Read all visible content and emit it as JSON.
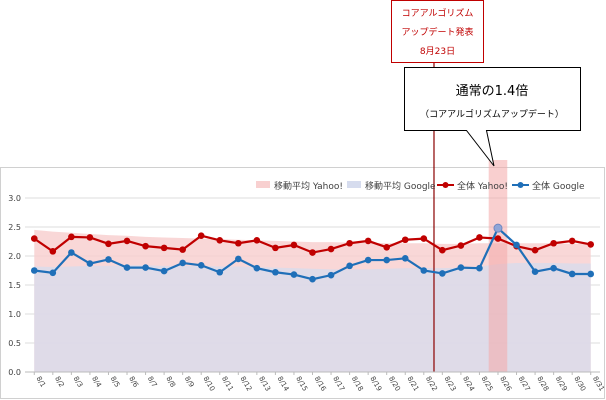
{
  "colors": {
    "yahoo_line": "#c00000",
    "google_line": "#1f6fb8",
    "yahoo_ma_fill": "#f8d0d0",
    "google_ma_fill": "#d6dcee",
    "highlight": "#f4a7a7",
    "event_line": "#8b0000",
    "callout_border": "#c00000"
  },
  "event_callout": {
    "line1": "コアアルゴリズム",
    "line2": "アップデート発表",
    "line3": "8月23日"
  },
  "ratio_callout": {
    "title": "通常の1.4倍",
    "subtitle": "（コアアルゴリズムアップデート）"
  },
  "chart_data": {
    "type": "line",
    "categories": [
      "8/1",
      "8/2",
      "8/3",
      "8/4",
      "8/5",
      "8/6",
      "8/7",
      "8/8",
      "8/9",
      "8/10",
      "8/11",
      "8/12",
      "8/13",
      "8/14",
      "8/15",
      "8/16",
      "8/17",
      "8/18",
      "8/19",
      "8/20",
      "8/21",
      "8/22",
      "8/23",
      "8/24",
      "8/25",
      "8/26",
      "8/27",
      "8/28",
      "8/29",
      "8/30",
      "8/31"
    ],
    "ylim": [
      0,
      3.0
    ],
    "yticks": [
      "0.0",
      "0.5",
      "1.0",
      "1.5",
      "2.0",
      "2.5",
      "3.0"
    ],
    "event_category": "8/23",
    "highlight_category": "8/26",
    "legend_position": "top",
    "series": [
      {
        "name": "移動平均 Yahoo!",
        "kind": "area",
        "values": [
          2.45,
          2.42,
          2.4,
          2.38,
          2.36,
          2.35,
          2.33,
          2.32,
          2.31,
          2.3,
          2.29,
          2.28,
          2.27,
          2.26,
          2.25,
          2.24,
          2.24,
          2.23,
          2.23,
          2.22,
          2.22,
          2.22,
          2.21,
          2.21,
          2.22,
          2.22,
          2.22,
          2.22,
          2.22,
          2.21,
          2.21
        ]
      },
      {
        "name": "移動平均 Google",
        "kind": "area",
        "values": [
          1.82,
          1.81,
          1.82,
          1.83,
          1.83,
          1.84,
          1.84,
          1.83,
          1.83,
          1.83,
          1.82,
          1.82,
          1.81,
          1.8,
          1.79,
          1.78,
          1.77,
          1.77,
          1.77,
          1.78,
          1.79,
          1.79,
          1.79,
          1.8,
          1.82,
          1.86,
          1.88,
          1.88,
          1.88,
          1.87,
          1.87
        ]
      },
      {
        "name": "全体 Yahoo!",
        "kind": "line",
        "values": [
          2.3,
          2.08,
          2.33,
          2.32,
          2.21,
          2.26,
          2.17,
          2.14,
          2.11,
          2.35,
          2.27,
          2.22,
          2.27,
          2.14,
          2.19,
          2.06,
          2.12,
          2.22,
          2.26,
          2.15,
          2.28,
          2.3,
          2.1,
          2.18,
          2.32,
          2.3,
          2.17,
          2.1,
          2.22,
          2.26,
          2.2
        ]
      },
      {
        "name": "全体 Google",
        "kind": "line",
        "values": [
          1.75,
          1.71,
          2.06,
          1.87,
          1.94,
          1.8,
          1.8,
          1.74,
          1.88,
          1.84,
          1.72,
          1.95,
          1.79,
          1.72,
          1.68,
          1.6,
          1.67,
          1.83,
          1.93,
          1.93,
          1.96,
          1.75,
          1.7,
          1.8,
          1.79,
          2.48,
          2.19,
          1.73,
          1.79,
          1.69,
          1.69
        ]
      }
    ]
  }
}
